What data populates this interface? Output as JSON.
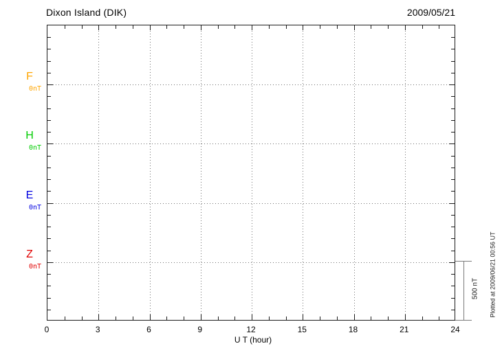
{
  "header": {
    "title": "Dixon Island (DIK)",
    "date": "2009/05/21"
  },
  "x_axis": {
    "label": "U T (hour)"
  },
  "scale_bar": {
    "label": "500 nT"
  },
  "footnote": "Plotted at 2009/06/21 00:56 UT",
  "colors": {
    "F": "#FFA500",
    "H": "#00CC00",
    "E": "#0000E0",
    "Z": "#E00000",
    "axis": "#1a1a1a",
    "grid_dots": "#6e6e6e",
    "scale_bar": "#7a7a7a"
  },
  "chart_data": {
    "type": "line",
    "title": "Dixon Island (DIK)",
    "date": "2009/05/21",
    "xlabel": "U T (hour)",
    "x_range": [
      0,
      24
    ],
    "x_major_ticks": [
      0,
      3,
      6,
      9,
      12,
      15,
      18,
      21,
      24
    ],
    "x_minor_tick_step_hours": 1,
    "grid": true,
    "legend_position": "left-margin",
    "y_minor_divisions_per_component": 5,
    "scale_bar_nT": 500,
    "series": [
      {
        "name": "F",
        "baseline_label": "0nT",
        "color": "#FFA500",
        "values": []
      },
      {
        "name": "H",
        "baseline_label": "0nT",
        "color": "#00CC00",
        "values": []
      },
      {
        "name": "E",
        "baseline_label": "0nT",
        "color": "#0000E0",
        "values": []
      },
      {
        "name": "Z",
        "baseline_label": "0nT",
        "color": "#E00000",
        "values": []
      }
    ],
    "note": "Empty magnetogram grid for 2009/05/21 — no data traces are drawn; each component baseline is labeled 0nT and one vertical division equals 500 nT per the scale bar."
  }
}
